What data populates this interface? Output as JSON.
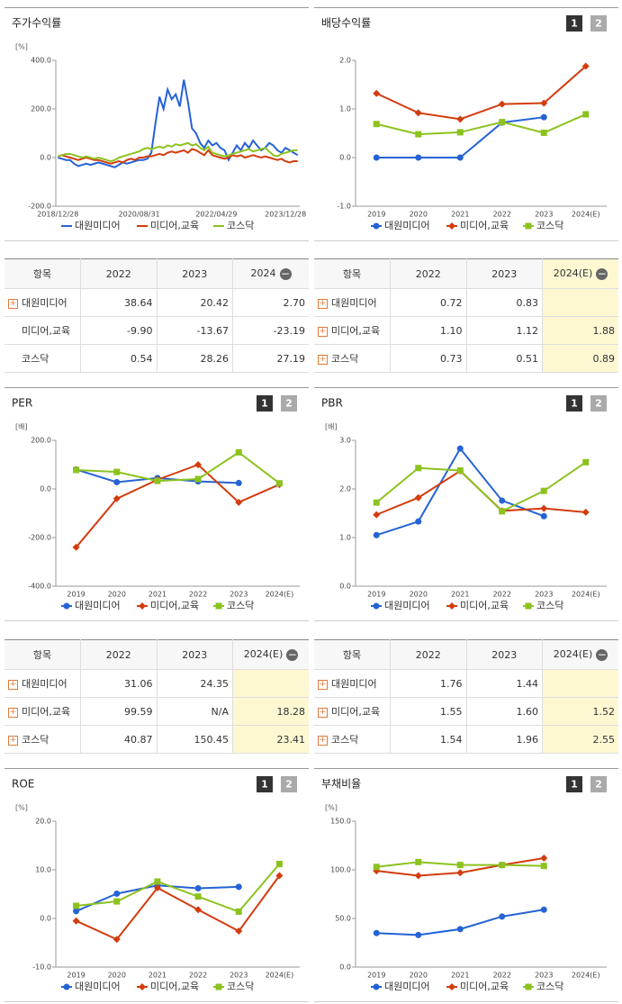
{
  "panel_buttons": [
    "1",
    "2"
  ],
  "chart_data": [
    {
      "type": "line",
      "title": "주가수익률",
      "unit": "[%]",
      "buttons": false,
      "markers": false,
      "categories": [
        "2018/12/28",
        null,
        null,
        null,
        null,
        null,
        null,
        null,
        null,
        null,
        null,
        null,
        null,
        null,
        null,
        null,
        null,
        null,
        null,
        null,
        "2020/08/31",
        null,
        null,
        null,
        null,
        null,
        null,
        null,
        null,
        null,
        null,
        null,
        null,
        null,
        null,
        null,
        null,
        null,
        null,
        "2022/04/29",
        null,
        null,
        null,
        null,
        null,
        null,
        null,
        null,
        null,
        null,
        null,
        null,
        null,
        null,
        null,
        null,
        "2023/12/28",
        null,
        null,
        null
      ],
      "ylim": [
        -200,
        400
      ],
      "yticks": [
        {
          "value": -200,
          "label": "-200.0"
        },
        {
          "value": 0,
          "label": "0.0"
        },
        {
          "value": 200,
          "label": "200.0"
        },
        {
          "value": 400,
          "label": "400.0"
        }
      ],
      "series": [
        {
          "name": "대원미디어",
          "color": "#2563d4",
          "marker": "circle",
          "values": [
            0,
            -5,
            -10,
            -10,
            -25,
            -35,
            -30,
            -25,
            -30,
            -25,
            -20,
            -25,
            -30,
            -35,
            -40,
            -30,
            -20,
            -25,
            -20,
            -15,
            -10,
            -10,
            -5,
            20,
            140,
            250,
            200,
            280,
            240,
            260,
            210,
            320,
            230,
            120,
            100,
            60,
            40,
            70,
            50,
            60,
            40,
            30,
            -10,
            20,
            50,
            30,
            60,
            40,
            70,
            50,
            30,
            40,
            60,
            50,
            30,
            20,
            40,
            30,
            20,
            10
          ]
        },
        {
          "name": "미디어,교육",
          "color": "#d23c0e",
          "marker": "diamond",
          "values": [
            5,
            10,
            5,
            0,
            -5,
            -10,
            -5,
            0,
            -5,
            -10,
            -10,
            -15,
            -20,
            -25,
            -20,
            -15,
            -20,
            -10,
            -5,
            -10,
            0,
            0,
            5,
            5,
            10,
            15,
            10,
            20,
            25,
            20,
            25,
            30,
            20,
            35,
            30,
            20,
            10,
            30,
            10,
            5,
            0,
            -5,
            0,
            10,
            5,
            10,
            0,
            5,
            10,
            5,
            0,
            5,
            0,
            -5,
            -10,
            -5,
            -15,
            -20,
            -15,
            -15
          ]
        },
        {
          "name": "코스닥",
          "color": "#8cc21f",
          "marker": "square",
          "values": [
            5,
            10,
            15,
            15,
            10,
            5,
            0,
            5,
            0,
            -5,
            0,
            -5,
            -10,
            -15,
            -10,
            0,
            5,
            10,
            15,
            20,
            25,
            35,
            40,
            35,
            40,
            45,
            40,
            50,
            45,
            55,
            50,
            55,
            60,
            50,
            55,
            40,
            30,
            45,
            20,
            15,
            10,
            5,
            10,
            15,
            20,
            25,
            30,
            35,
            25,
            30,
            35,
            40,
            25,
            10,
            5,
            15,
            20,
            25,
            30,
            30
          ]
        }
      ]
    },
    {
      "type": "line",
      "title": "배당수익률",
      "unit": null,
      "buttons": true,
      "markers": true,
      "categories": [
        "2019",
        "2020",
        "2021",
        "2022",
        "2023",
        "2024(E)"
      ],
      "ylim": [
        -1,
        2
      ],
      "yticks": [
        {
          "value": -1,
          "label": "-1.0"
        },
        {
          "value": 0,
          "label": "0.0"
        },
        {
          "value": 1,
          "label": "1.0"
        },
        {
          "value": 2,
          "label": "2.0"
        }
      ],
      "series": [
        {
          "name": "대원미디어",
          "color": "#2563d4",
          "marker": "circle",
          "values": [
            0,
            0,
            0,
            0.72,
            0.83,
            null
          ]
        },
        {
          "name": "미디어,교육",
          "color": "#d23c0e",
          "marker": "diamond",
          "values": [
            1.32,
            0.92,
            0.79,
            1.1,
            1.12,
            1.88
          ]
        },
        {
          "name": "코스닥",
          "color": "#8cc21f",
          "marker": "square",
          "values": [
            0.69,
            0.48,
            0.52,
            0.73,
            0.51,
            0.89
          ]
        }
      ]
    },
    {
      "type": "line",
      "title": "PER",
      "unit": "[배]",
      "buttons": true,
      "markers": true,
      "categories": [
        "2019",
        "2020",
        "2021",
        "2022",
        "2023",
        "2024(E)"
      ],
      "ylim": [
        -400,
        200
      ],
      "yticks": [
        {
          "value": -400,
          "label": "-400.0"
        },
        {
          "value": -200,
          "label": "-200.0"
        },
        {
          "value": 0,
          "label": "0.0"
        },
        {
          "value": 200,
          "label": "200.0"
        }
      ],
      "series": [
        {
          "name": "대원미디어",
          "color": "#2563d4",
          "marker": "circle",
          "values": [
            80,
            28,
            45,
            31.06,
            24.35,
            null
          ]
        },
        {
          "name": "미디어,교육",
          "color": "#d23c0e",
          "marker": "diamond",
          "values": [
            -240,
            -40,
            38,
            99.59,
            -55,
            18.28
          ]
        },
        {
          "name": "코스닥",
          "color": "#8cc21f",
          "marker": "square",
          "values": [
            78,
            70,
            33,
            40.87,
            150.45,
            23.41
          ]
        }
      ]
    },
    {
      "type": "line",
      "title": "PBR",
      "unit": "[배]",
      "buttons": true,
      "markers": true,
      "categories": [
        "2019",
        "2020",
        "2021",
        "2022",
        "2023",
        "2024(E)"
      ],
      "ylim": [
        0,
        3
      ],
      "yticks": [
        {
          "value": 0,
          "label": "0.0"
        },
        {
          "value": 1,
          "label": "1.0"
        },
        {
          "value": 2,
          "label": "2.0"
        },
        {
          "value": 3,
          "label": "3.0"
        }
      ],
      "series": [
        {
          "name": "대원미디어",
          "color": "#2563d4",
          "marker": "circle",
          "values": [
            1.05,
            1.33,
            2.83,
            1.76,
            1.44,
            null
          ]
        },
        {
          "name": "미디어,교육",
          "color": "#d23c0e",
          "marker": "diamond",
          "values": [
            1.47,
            1.82,
            2.37,
            1.55,
            1.6,
            1.52
          ]
        },
        {
          "name": "코스닥",
          "color": "#8cc21f",
          "marker": "square",
          "values": [
            1.72,
            2.43,
            2.38,
            1.54,
            1.96,
            2.55
          ]
        }
      ]
    },
    {
      "type": "line",
      "title": "ROE",
      "unit": "[%]",
      "buttons": true,
      "markers": true,
      "categories": [
        "2019",
        "2020",
        "2021",
        "2022",
        "2023",
        "2024(E)"
      ],
      "ylim": [
        -10,
        20
      ],
      "yticks": [
        {
          "value": -10,
          "label": "-10.0"
        },
        {
          "value": 0,
          "label": "0.0"
        },
        {
          "value": 10,
          "label": "10.0"
        },
        {
          "value": 20,
          "label": "20.0"
        }
      ],
      "series": [
        {
          "name": "대원미디어",
          "color": "#2563d4",
          "marker": "circle",
          "values": [
            1.5,
            5.1,
            6.8,
            6.2,
            6.5,
            null
          ]
        },
        {
          "name": "미디어,교육",
          "color": "#d23c0e",
          "marker": "diamond",
          "values": [
            -0.5,
            -4.3,
            6.3,
            1.8,
            -2.6,
            8.8
          ]
        },
        {
          "name": "코스닥",
          "color": "#8cc21f",
          "marker": "square",
          "values": [
            2.6,
            3.5,
            7.6,
            4.5,
            1.4,
            11.2
          ]
        }
      ]
    },
    {
      "type": "line",
      "title": "부채비율",
      "unit": "[%]",
      "buttons": true,
      "markers": true,
      "categories": [
        "2019",
        "2020",
        "2021",
        "2022",
        "2023",
        "2024(E)"
      ],
      "ylim": [
        0,
        150
      ],
      "yticks": [
        {
          "value": 0,
          "label": "0.0"
        },
        {
          "value": 50,
          "label": "50.0"
        },
        {
          "value": 100,
          "label": "100.0"
        },
        {
          "value": 150,
          "label": "150.0"
        }
      ],
      "series": [
        {
          "name": "대원미디어",
          "color": "#2563d4",
          "marker": "circle",
          "values": [
            35,
            33,
            39,
            52,
            59,
            null
          ]
        },
        {
          "name": "미디어,교육",
          "color": "#d23c0e",
          "marker": "diamond",
          "values": [
            99,
            94,
            97,
            105,
            112,
            null
          ]
        },
        {
          "name": "코스닥",
          "color": "#8cc21f",
          "marker": "square",
          "values": [
            103,
            108,
            105,
            105,
            104,
            null
          ]
        }
      ]
    }
  ],
  "tables": [
    {
      "header": [
        "항목",
        "2022",
        "2023",
        "2024"
      ],
      "highlight": false,
      "header_highlight": false,
      "rows": [
        {
          "label": "대원미디어",
          "icon": true,
          "cells": [
            "38.64",
            "20.42",
            "2.70"
          ]
        },
        {
          "label": "미디어,교육",
          "icon": false,
          "cells": [
            "-9.90",
            "-13.67",
            "-23.19"
          ]
        },
        {
          "label": "코스닥",
          "icon": false,
          "cells": [
            "0.54",
            "28.26",
            "27.19"
          ]
        }
      ]
    },
    {
      "header": [
        "항목",
        "2022",
        "2023",
        "2024(E)"
      ],
      "highlight": true,
      "header_highlight": true,
      "rows": [
        {
          "label": "대원미디어",
          "icon": true,
          "cells": [
            "0.72",
            "0.83",
            null
          ]
        },
        {
          "label": "미디어,교육",
          "icon": true,
          "cells": [
            "1.10",
            "1.12",
            "1.88"
          ]
        },
        {
          "label": "코스닥",
          "icon": true,
          "cells": [
            "0.73",
            "0.51",
            "0.89"
          ]
        }
      ]
    },
    {
      "header": [
        "항목",
        "2022",
        "2023",
        "2024(E)"
      ],
      "highlight": true,
      "header_highlight": false,
      "rows": [
        {
          "label": "대원미디어",
          "icon": true,
          "cells": [
            "31.06",
            "24.35",
            null
          ]
        },
        {
          "label": "미디어,교육",
          "icon": true,
          "cells": [
            "99.59",
            "N/A",
            "18.28"
          ]
        },
        {
          "label": "코스닥",
          "icon": true,
          "cells": [
            "40.87",
            "150.45",
            "23.41"
          ]
        }
      ]
    },
    {
      "header": [
        "항목",
        "2022",
        "2023",
        "2024(E)"
      ],
      "highlight": true,
      "header_highlight": false,
      "rows": [
        {
          "label": "대원미디어",
          "icon": true,
          "cells": [
            "1.76",
            "1.44",
            null
          ]
        },
        {
          "label": "미디어,교육",
          "icon": true,
          "cells": [
            "1.55",
            "1.60",
            "1.52"
          ]
        },
        {
          "label": "코스닥",
          "icon": true,
          "cells": [
            "1.54",
            "1.96",
            "2.55"
          ]
        }
      ]
    }
  ]
}
